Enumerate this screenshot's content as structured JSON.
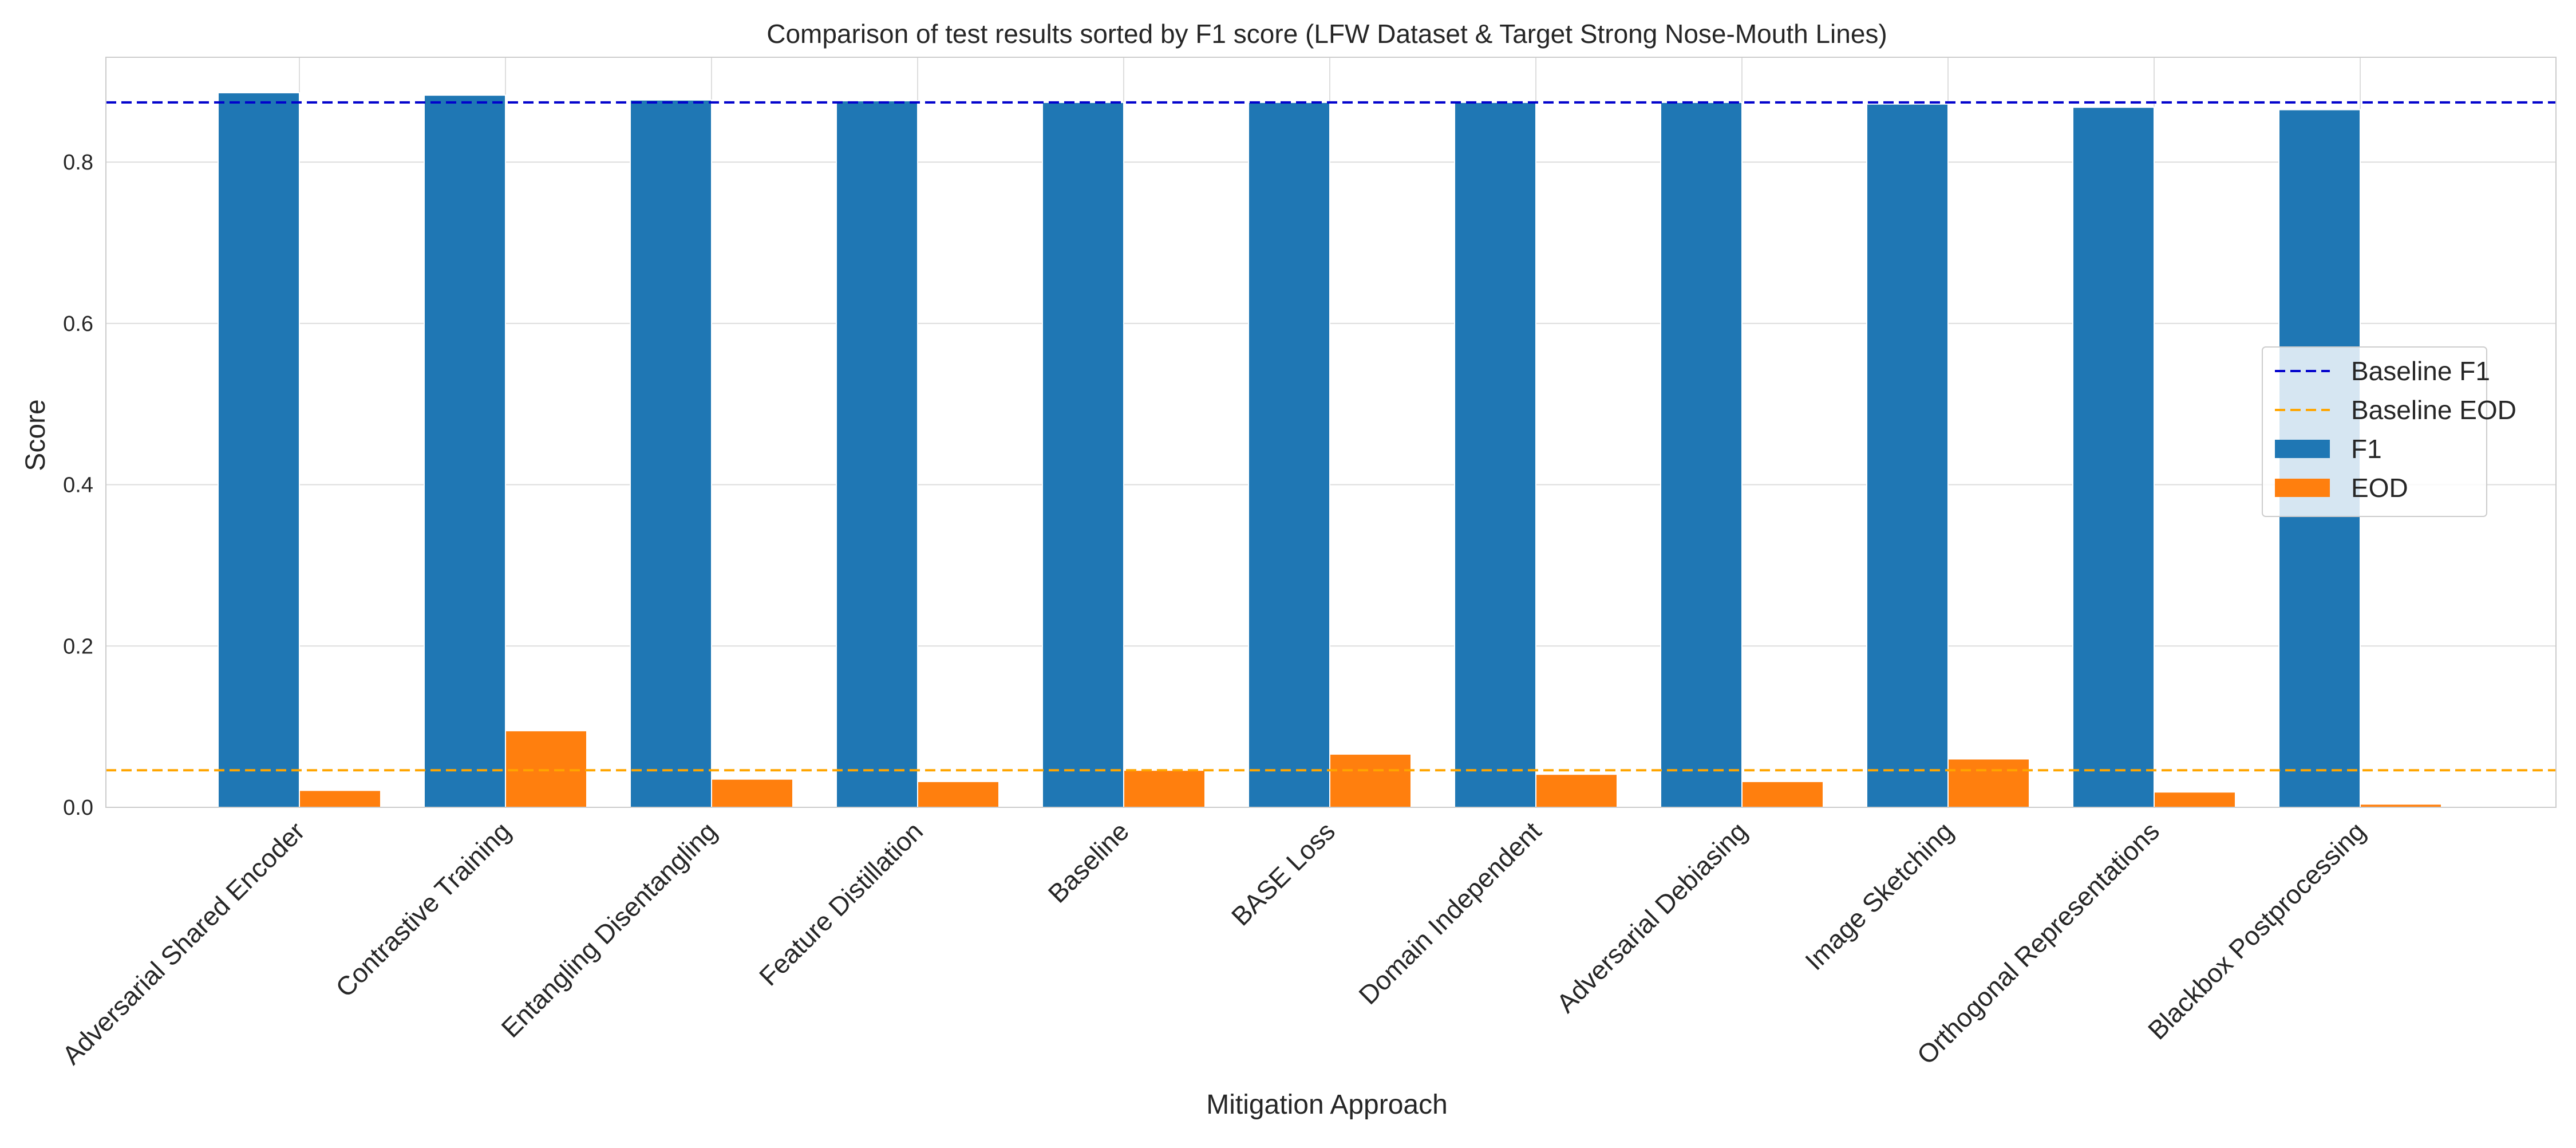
{
  "chart_data": {
    "type": "bar",
    "title": "Comparison of test results sorted by F1 score (LFW Dataset & Target Strong Nose-Mouth Lines)",
    "xlabel": "Mitigation Approach",
    "ylabel": "Score",
    "ylim": [
      0,
      0.93
    ],
    "yticks": [
      "0.0",
      "0.2",
      "0.4",
      "0.6",
      "0.8"
    ],
    "grid": true,
    "legend_position": "center-right",
    "categories": [
      "Adversarial Shared Encoder",
      "Contrastive Training",
      "Entangling Disentangling",
      "Feature Distillation",
      "Baseline",
      "BASE Loss",
      "Domain Independent",
      "Adversarial Debiasing",
      "Image Sketching",
      "Orthogonal Representations",
      "Blackbox Postprocessing"
    ],
    "series": [
      {
        "name": "F1",
        "color": "#1f77b4",
        "values": [
          0.886,
          0.883,
          0.877,
          0.876,
          0.874,
          0.874,
          0.874,
          0.874,
          0.872,
          0.868,
          0.865
        ]
      },
      {
        "name": "EOD",
        "color": "#ff7f0e",
        "values": [
          0.021,
          0.095,
          0.035,
          0.032,
          0.046,
          0.066,
          0.041,
          0.032,
          0.06,
          0.019,
          0.004
        ]
      }
    ],
    "reference_lines": [
      {
        "name": "Baseline F1",
        "value": 0.874,
        "color": "#0000cc",
        "style": "dashed"
      },
      {
        "name": "Baseline EOD",
        "value": 0.046,
        "color": "#ffa500",
        "style": "dashed"
      }
    ],
    "legend": [
      "Baseline F1",
      "Baseline EOD",
      "F1",
      "EOD"
    ]
  }
}
